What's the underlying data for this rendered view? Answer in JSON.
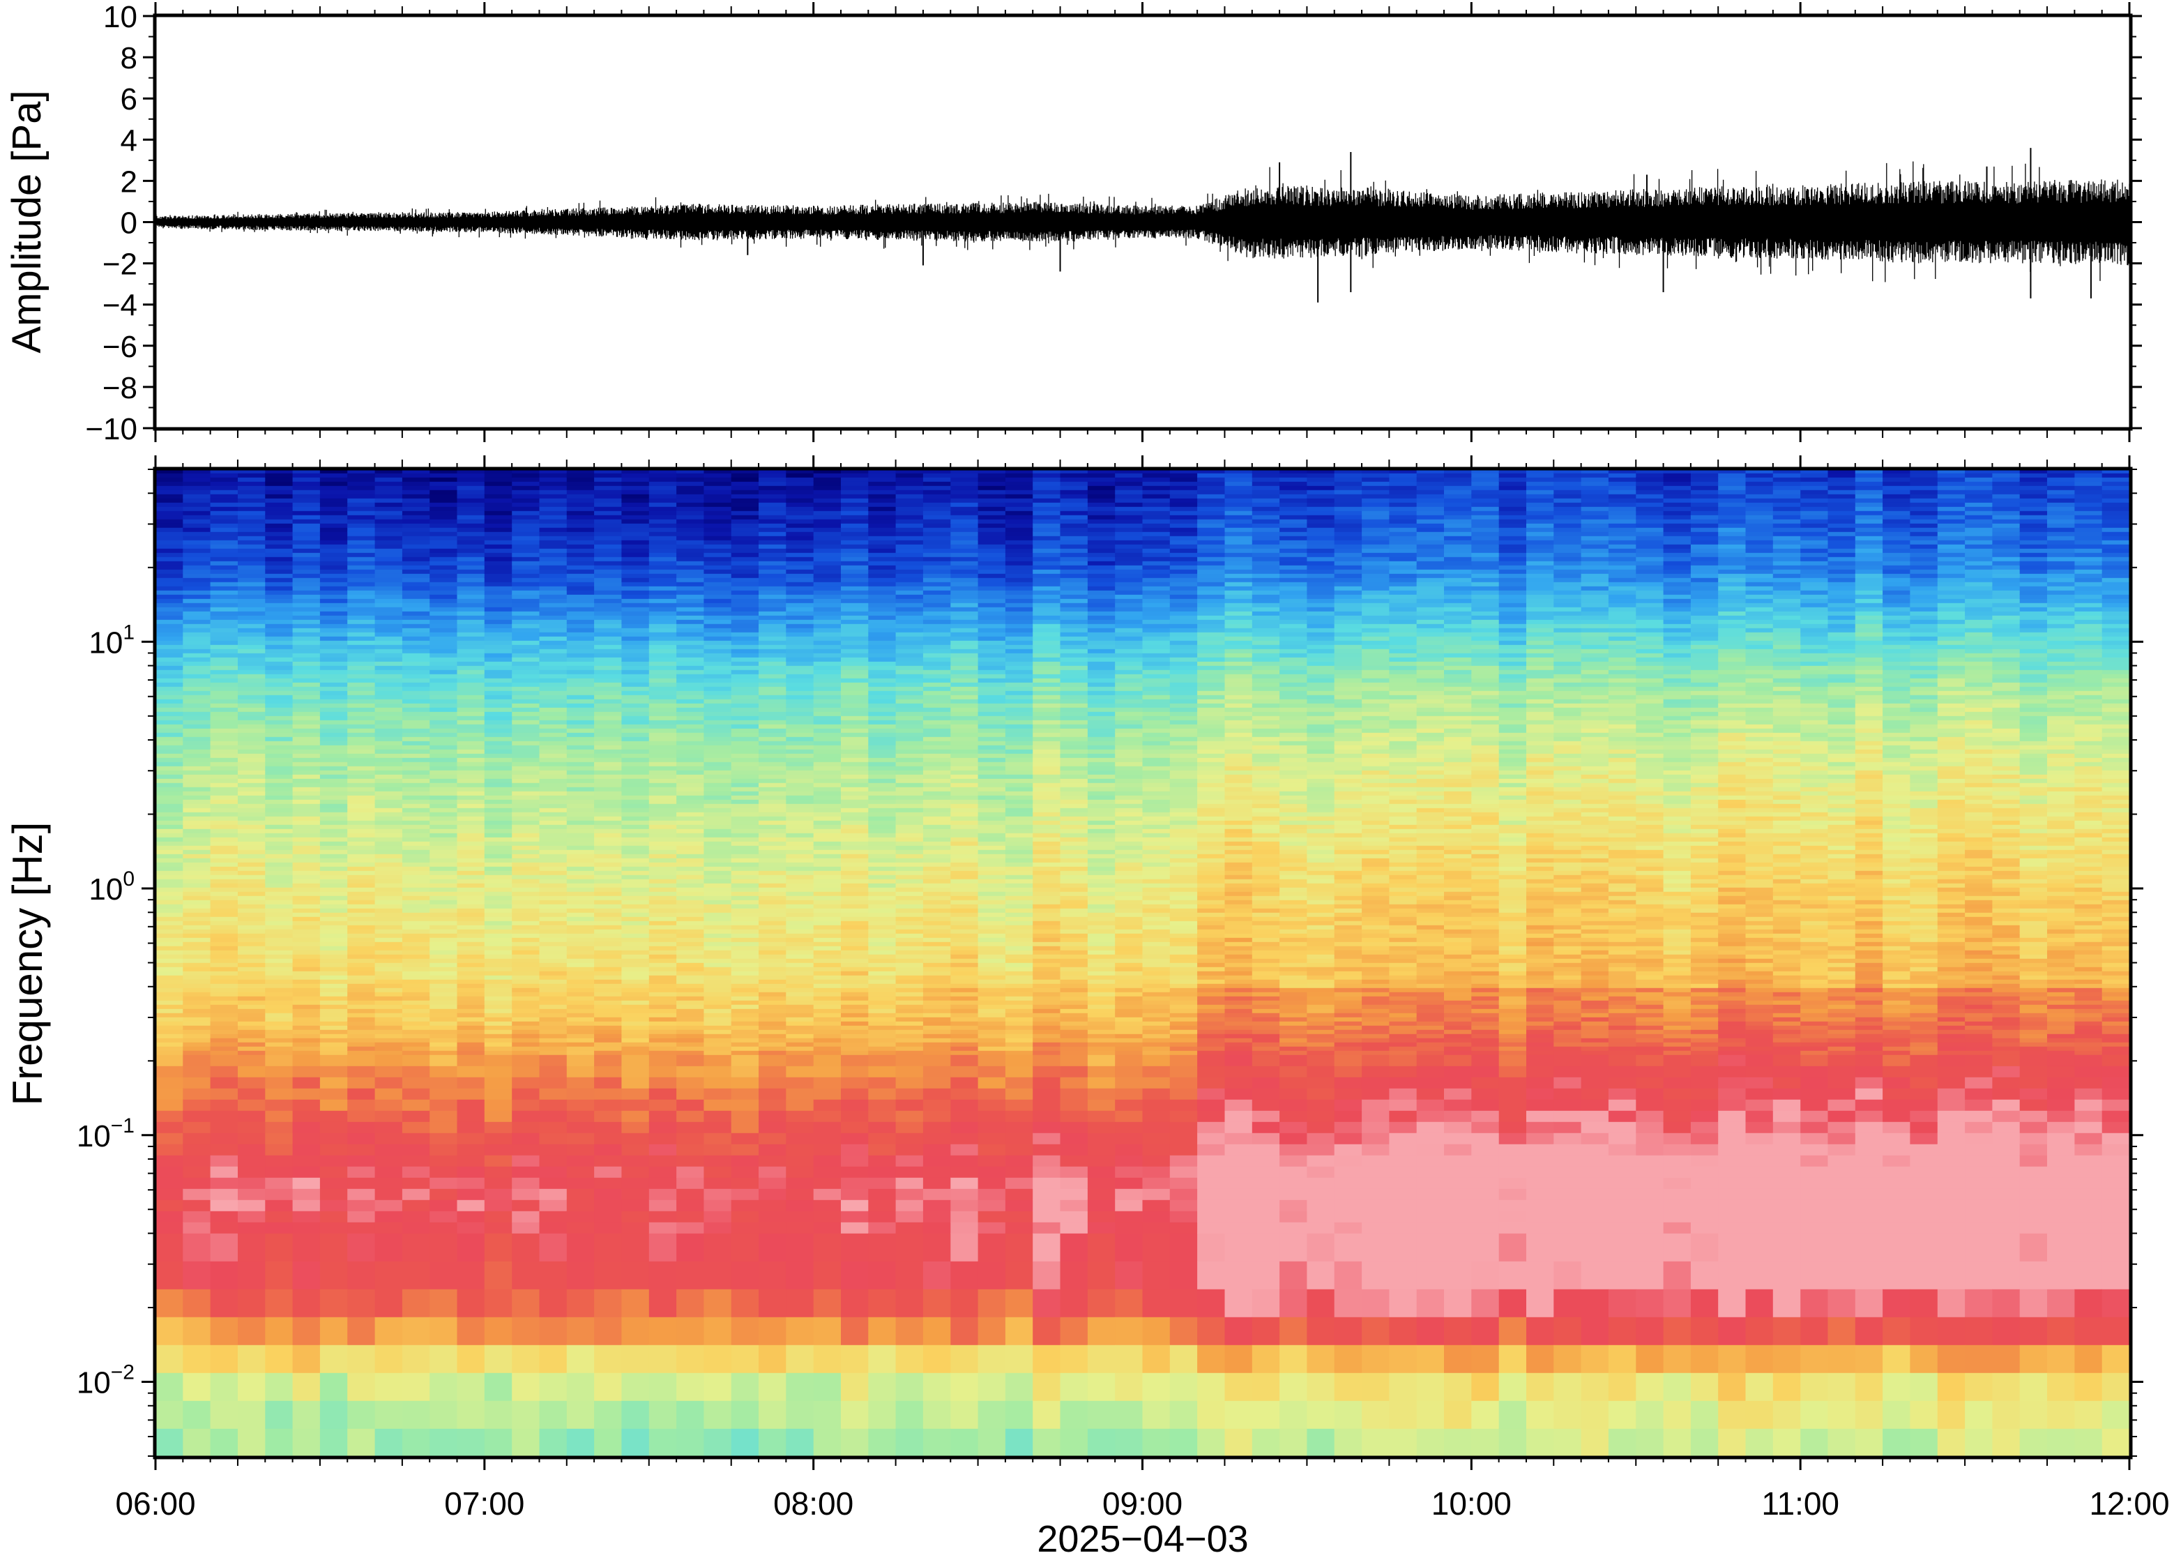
{
  "chart_data": [
    {
      "type": "line",
      "ylabel": "Amplitude [Pa]",
      "ylim": [
        -10,
        10
      ],
      "yticks": [
        -10,
        -8,
        -6,
        -4,
        -2,
        0,
        2,
        4,
        6,
        8,
        10
      ],
      "ytick_labels": [
        "−10",
        "−8",
        "−6",
        "−4",
        "−2",
        "0",
        "2",
        "4",
        "6",
        "8",
        "10"
      ],
      "xlim": [
        "06:00",
        "12:00"
      ],
      "series": [
        {
          "x": [
            "06:00",
            "06:20",
            "06:40",
            "07:00",
            "07:20",
            "07:40",
            "08:00",
            "08:20",
            "08:40",
            "09:00",
            "09:10",
            "09:20",
            "09:40",
            "10:00",
            "10:20",
            "10:40",
            "11:00",
            "11:20",
            "11:40",
            "12:00"
          ],
          "envelope": [
            0.3,
            0.4,
            0.45,
            0.5,
            0.7,
            0.9,
            0.8,
            0.9,
            1.0,
            0.8,
            0.8,
            1.8,
            1.7,
            1.3,
            1.5,
            1.7,
            1.8,
            2.0,
            2.0,
            2.1
          ],
          "peaks": [
            {
              "x": "07:48",
              "y": -1.6
            },
            {
              "x": "08:20",
              "y": -2.1
            },
            {
              "x": "08:45",
              "y": -2.4
            },
            {
              "x": "09:25",
              "y": 2.9
            },
            {
              "x": "09:32",
              "y": -3.9
            },
            {
              "x": "09:38",
              "y": 3.4
            },
            {
              "x": "09:38",
              "y": -3.4
            },
            {
              "x": "10:32",
              "y": 2.3
            },
            {
              "x": "10:35",
              "y": -3.4
            },
            {
              "x": "11:34",
              "y": 2.7
            },
            {
              "x": "11:42",
              "y": 3.6
            },
            {
              "x": "11:42",
              "y": -3.7
            },
            {
              "x": "11:53",
              "y": -3.7
            }
          ]
        }
      ]
    },
    {
      "type": "heatmap",
      "ylabel": "Frequency [Hz]",
      "yscale": "log",
      "ylim": [
        0.005,
        50
      ],
      "yticks": [
        {
          "base": "10",
          "exp": "−2"
        },
        {
          "base": "10",
          "exp": "−1"
        },
        {
          "base": "10",
          "exp": "0"
        },
        {
          "base": "10",
          "exp": "1"
        }
      ],
      "ytick_values": [
        0.01,
        0.1,
        1,
        10
      ],
      "xlabel": "2025−04−03",
      "x_tick_labels": [
        "06:00",
        "07:00",
        "08:00",
        "09:00",
        "10:00",
        "11:00",
        "12:00"
      ],
      "xlim": [
        "06:00",
        "12:00"
      ],
      "colormap": "rainbow (blue = low, red/pink = high power)",
      "colors": {
        "low": "#00007a",
        "mid": "#e6ef8a",
        "high": "#e8475a",
        "peak": "#f5a0a8"
      },
      "highest_power_band_hz": [
        0.03,
        0.3
      ],
      "energy_increase_after": "09:12"
    }
  ]
}
